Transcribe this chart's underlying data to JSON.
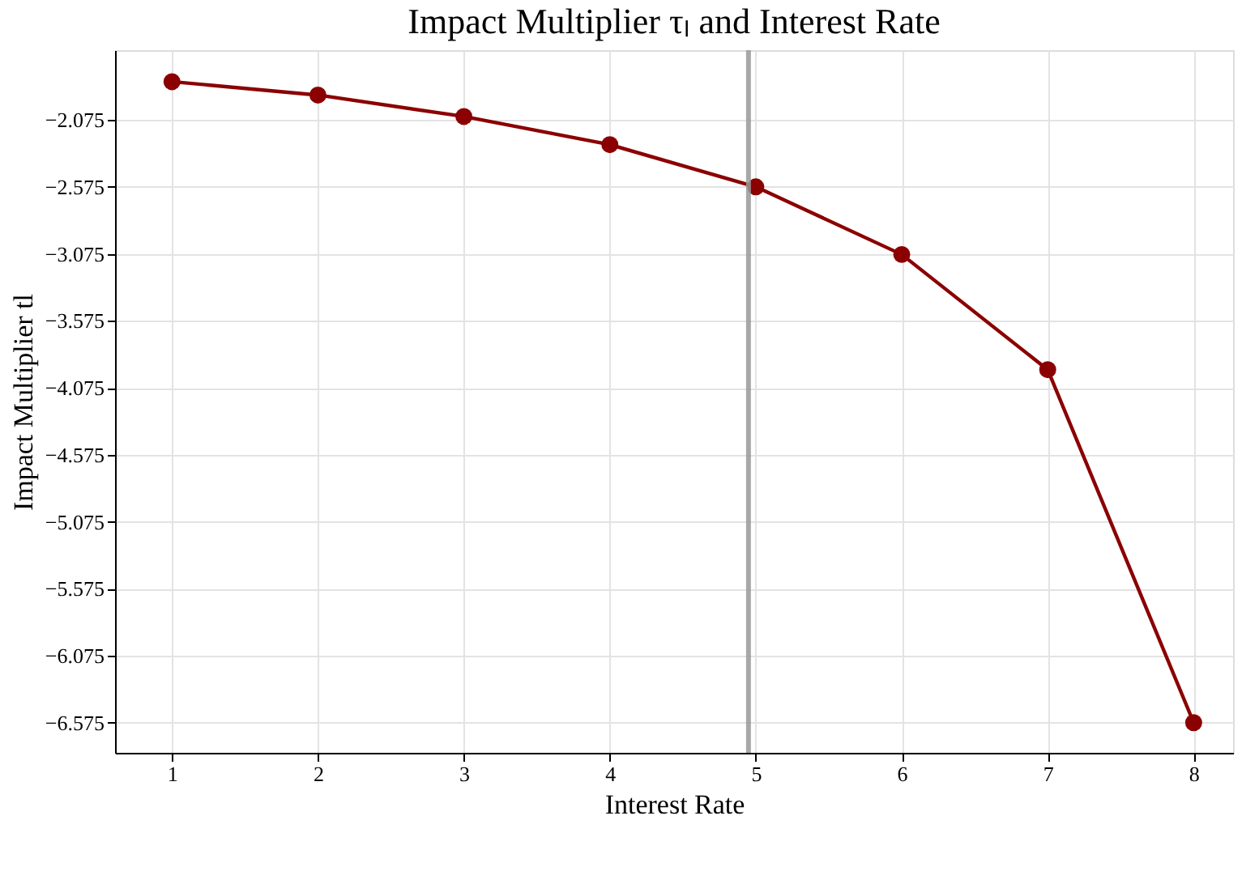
{
  "chart_data": {
    "type": "line",
    "title": "Impact Multiplier τₗ and Interest Rate",
    "xlabel": "Interest Rate",
    "ylabel": "Impact Multiplier tl",
    "x": [
      1,
      2,
      3,
      4,
      5,
      6,
      7,
      8
    ],
    "series": [
      {
        "color": "#8b0000",
        "values": [
          -1.79,
          -1.89,
          -2.05,
          -2.26,
          -2.575,
          -3.08,
          -3.94,
          -6.575
        ]
      }
    ],
    "xlim": [
      0.61,
      8.27
    ],
    "xticks": [
      1,
      2,
      3,
      4,
      5,
      6,
      7,
      8
    ],
    "ylim": [
      -6.8,
      -1.555
    ],
    "yticks": [
      {
        "value": -2.075,
        "label": "−2.075"
      },
      {
        "value": -2.575,
        "label": "−2.575"
      },
      {
        "value": -3.075,
        "label": "−3.075"
      },
      {
        "value": -3.575,
        "label": "−3.575"
      },
      {
        "value": -4.075,
        "label": "−4.075"
      },
      {
        "value": -4.575,
        "label": "−4.575"
      },
      {
        "value": -5.075,
        "label": "−5.075"
      },
      {
        "value": -5.575,
        "label": "−5.575"
      },
      {
        "value": -6.075,
        "label": "−6.075"
      },
      {
        "value": -6.575,
        "label": "−6.575"
      }
    ],
    "ref_lines": [
      {
        "axis": "x",
        "value": 4.95,
        "color": "#999999"
      }
    ],
    "grid": true,
    "marker": "circle",
    "line_style": "solid"
  }
}
